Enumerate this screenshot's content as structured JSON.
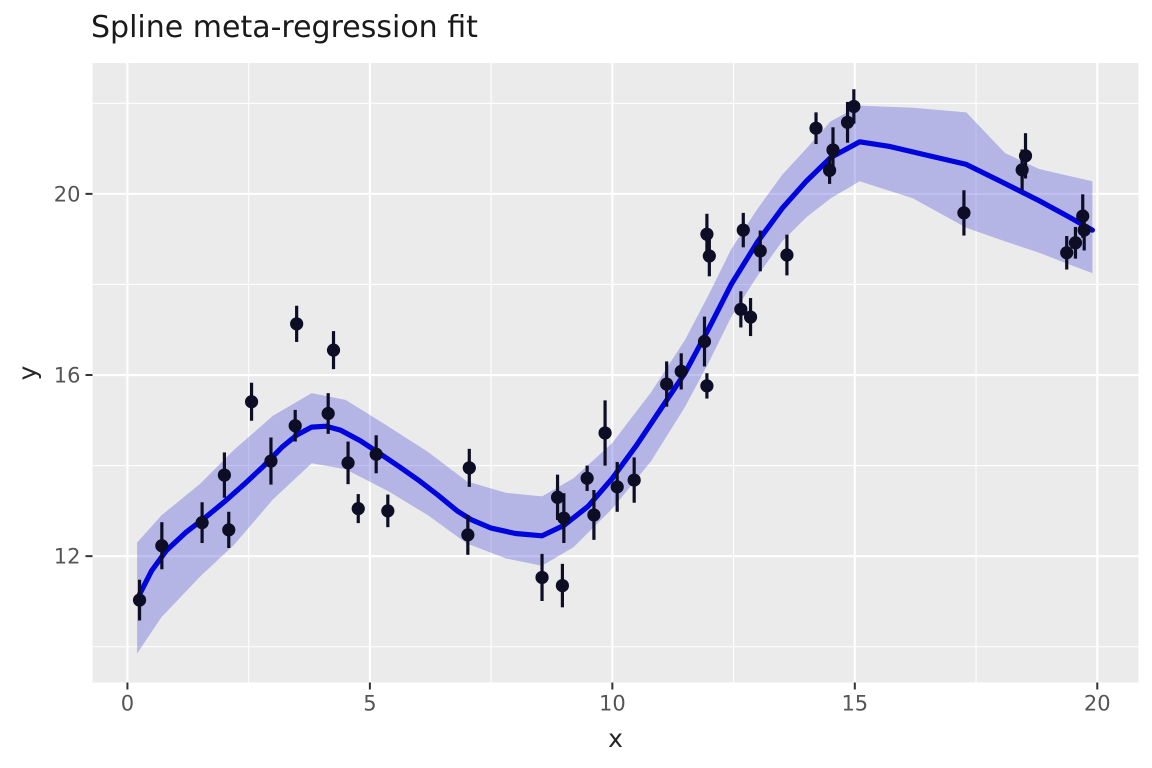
{
  "chart_data": {
    "type": "scatter",
    "title": "Spline meta-regression fit",
    "xlabel": "x",
    "ylabel": "y",
    "grid": true,
    "legend": false,
    "xlim": [
      -0.72,
      20.85
    ],
    "ylim": [
      9.21,
      22.89
    ],
    "x_ticks": [
      0,
      5,
      10,
      15,
      20
    ],
    "y_ticks": [
      12,
      16,
      20
    ],
    "x_minor_ticks": [
      2.5,
      7.5,
      12.5,
      17.5
    ],
    "y_minor_ticks": [
      10,
      14,
      18,
      22
    ],
    "colors": {
      "panel_bg": "#EBEBEB",
      "grid_major": "#FFFFFF",
      "grid_minor": "#FFFFFF",
      "ribbon_fill": "#5050DB",
      "ribbon_opacity": 0.35,
      "fit_line": "#0005DC",
      "point": "#0D0D26",
      "tick_mark": "#333333",
      "tick_label": "#555555",
      "axis_title": "#262626",
      "title": "#1A1A1A"
    },
    "points_x_y_se": [
      [
        0.25,
        11.03,
        0.45
      ],
      [
        0.71,
        12.23,
        0.52
      ],
      [
        1.54,
        12.74,
        0.45
      ],
      [
        2.0,
        13.79,
        0.5
      ],
      [
        2.09,
        12.58,
        0.4
      ],
      [
        2.56,
        15.41,
        0.42
      ],
      [
        2.96,
        14.1,
        0.52
      ],
      [
        3.46,
        14.88,
        0.35
      ],
      [
        3.49,
        17.13,
        0.4
      ],
      [
        4.14,
        15.15,
        0.45
      ],
      [
        4.25,
        16.55,
        0.42
      ],
      [
        4.55,
        14.06,
        0.47
      ],
      [
        4.76,
        13.05,
        0.32
      ],
      [
        5.13,
        14.25,
        0.42
      ],
      [
        5.37,
        13.0,
        0.36
      ],
      [
        7.02,
        12.47,
        0.44
      ],
      [
        7.05,
        13.95,
        0.42
      ],
      [
        8.55,
        11.53,
        0.52
      ],
      [
        8.87,
        13.3,
        0.5
      ],
      [
        8.97,
        11.35,
        0.48
      ],
      [
        9.0,
        12.84,
        0.55
      ],
      [
        9.48,
        13.72,
        0.28
      ],
      [
        9.62,
        12.91,
        0.55
      ],
      [
        9.85,
        14.72,
        0.72
      ],
      [
        10.1,
        13.53,
        0.55
      ],
      [
        10.45,
        13.68,
        0.5
      ],
      [
        11.12,
        15.8,
        0.5
      ],
      [
        11.42,
        16.08,
        0.4
      ],
      [
        11.9,
        16.74,
        0.55
      ],
      [
        11.95,
        15.76,
        0.28
      ],
      [
        11.95,
        19.11,
        0.45
      ],
      [
        12.0,
        18.63,
        0.45
      ],
      [
        12.65,
        17.45,
        0.4
      ],
      [
        12.7,
        19.2,
        0.38
      ],
      [
        12.85,
        17.28,
        0.42
      ],
      [
        13.05,
        18.74,
        0.45
      ],
      [
        13.6,
        18.65,
        0.45
      ],
      [
        14.2,
        21.45,
        0.35
      ],
      [
        14.48,
        20.52,
        0.3
      ],
      [
        14.55,
        20.97,
        0.5
      ],
      [
        14.85,
        21.58,
        0.45
      ],
      [
        14.98,
        21.93,
        0.38
      ],
      [
        17.25,
        19.58,
        0.5
      ],
      [
        18.45,
        20.53,
        0.45
      ],
      [
        18.52,
        20.84,
        0.5
      ],
      [
        19.37,
        18.7,
        0.37
      ],
      [
        19.55,
        18.92,
        0.35
      ],
      [
        19.7,
        19.51,
        0.48
      ],
      [
        19.73,
        19.2,
        0.45
      ]
    ],
    "fit_line_x_y": [
      [
        0.2,
        11.05
      ],
      [
        0.5,
        11.68
      ],
      [
        0.8,
        12.12
      ],
      [
        1.2,
        12.52
      ],
      [
        1.6,
        12.85
      ],
      [
        2.0,
        13.2
      ],
      [
        2.4,
        13.58
      ],
      [
        2.8,
        13.98
      ],
      [
        3.2,
        14.42
      ],
      [
        3.5,
        14.68
      ],
      [
        3.8,
        14.85
      ],
      [
        4.1,
        14.87
      ],
      [
        4.4,
        14.78
      ],
      [
        4.8,
        14.55
      ],
      [
        5.2,
        14.27
      ],
      [
        5.6,
        13.98
      ],
      [
        6.0,
        13.68
      ],
      [
        6.4,
        13.35
      ],
      [
        6.8,
        13.0
      ],
      [
        7.1,
        12.8
      ],
      [
        7.5,
        12.62
      ],
      [
        8.0,
        12.5
      ],
      [
        8.55,
        12.45
      ],
      [
        9.0,
        12.68
      ],
      [
        9.5,
        13.1
      ],
      [
        10.0,
        13.72
      ],
      [
        10.5,
        14.45
      ],
      [
        11.0,
        15.25
      ],
      [
        11.5,
        16.05
      ],
      [
        12.0,
        17.05
      ],
      [
        12.45,
        18.0
      ],
      [
        13.0,
        18.95
      ],
      [
        13.5,
        19.68
      ],
      [
        14.0,
        20.28
      ],
      [
        14.5,
        20.8
      ],
      [
        15.1,
        21.15
      ],
      [
        15.7,
        21.05
      ],
      [
        16.5,
        20.85
      ],
      [
        17.3,
        20.65
      ],
      [
        18.0,
        20.28
      ],
      [
        18.8,
        19.85
      ],
      [
        19.4,
        19.5
      ],
      [
        19.9,
        19.2
      ]
    ],
    "ribbon_x_lo_hi": [
      [
        0.2,
        9.85,
        12.3
      ],
      [
        0.7,
        10.65,
        12.9
      ],
      [
        1.5,
        11.55,
        13.6
      ],
      [
        2.2,
        12.25,
        14.35
      ],
      [
        3.0,
        13.25,
        15.1
      ],
      [
        3.8,
        14.05,
        15.6
      ],
      [
        4.5,
        13.92,
        15.45
      ],
      [
        5.4,
        13.42,
        14.85
      ],
      [
        6.2,
        12.9,
        14.3
      ],
      [
        7.0,
        12.28,
        13.65
      ],
      [
        7.8,
        11.95,
        13.4
      ],
      [
        8.55,
        11.79,
        13.32
      ],
      [
        9.2,
        12.2,
        13.72
      ],
      [
        10.0,
        13.05,
        14.5
      ],
      [
        10.8,
        14.1,
        15.62
      ],
      [
        11.5,
        15.3,
        16.78
      ],
      [
        12.0,
        16.3,
        17.8
      ],
      [
        12.45,
        17.28,
        18.78
      ],
      [
        13.0,
        18.2,
        19.68
      ],
      [
        13.5,
        18.95,
        20.42
      ],
      [
        14.0,
        19.48,
        21.0
      ],
      [
        14.5,
        19.9,
        21.6
      ],
      [
        15.1,
        20.28,
        21.95
      ],
      [
        16.2,
        19.9,
        21.9
      ],
      [
        17.3,
        19.25,
        21.8
      ],
      [
        18.1,
        18.95,
        20.9
      ],
      [
        18.8,
        18.7,
        20.55
      ],
      [
        19.4,
        18.45,
        20.4
      ],
      [
        19.9,
        18.25,
        20.28
      ]
    ]
  }
}
